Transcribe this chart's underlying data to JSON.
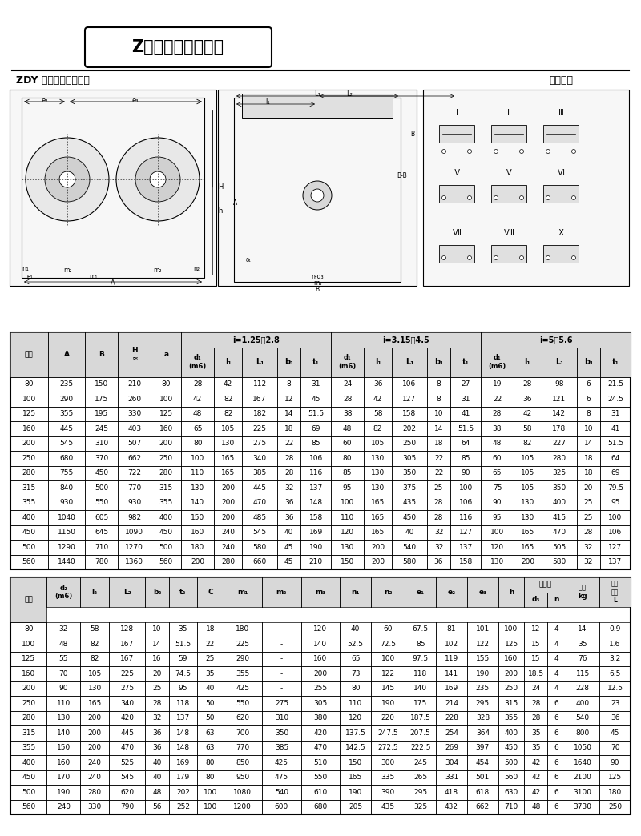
{
  "title": "Z系列外形安装尺寸",
  "subtitle_left": "ZDY 型圆柱齿轮减速机",
  "subtitle_right": "装配形式",
  "table1_data": [
    [
      80,
      235,
      150,
      210,
      80,
      28,
      42,
      112,
      8,
      31,
      24,
      36,
      106,
      8,
      27,
      19,
      28,
      98,
      6,
      21.5
    ],
    [
      100,
      290,
      175,
      260,
      100,
      42,
      82,
      167,
      12,
      45,
      28,
      42,
      127,
      8,
      31,
      22,
      36,
      121,
      6,
      24.5
    ],
    [
      125,
      355,
      195,
      330,
      125,
      48,
      82,
      182,
      14,
      51.5,
      38,
      58,
      158,
      10,
      41,
      28,
      42,
      142,
      8,
      31
    ],
    [
      160,
      445,
      245,
      403,
      160,
      65,
      105,
      225,
      18,
      69,
      48,
      82,
      202,
      14,
      51.5,
      38,
      58,
      178,
      10,
      41
    ],
    [
      200,
      545,
      310,
      507,
      200,
      80,
      130,
      275,
      22,
      85,
      60,
      105,
      250,
      18,
      64,
      48,
      82,
      227,
      14,
      51.5
    ],
    [
      250,
      680,
      370,
      662,
      250,
      100,
      165,
      340,
      28,
      106,
      80,
      130,
      305,
      22,
      85,
      60,
      105,
      280,
      18,
      64
    ],
    [
      280,
      755,
      450,
      722,
      280,
      110,
      165,
      385,
      28,
      116,
      85,
      130,
      350,
      22,
      90,
      65,
      105,
      325,
      18,
      69
    ],
    [
      315,
      840,
      500,
      770,
      315,
      130,
      200,
      445,
      32,
      137,
      95,
      130,
      375,
      25,
      100,
      75,
      105,
      350,
      20,
      79.5
    ],
    [
      355,
      930,
      550,
      930,
      355,
      140,
      200,
      470,
      36,
      148,
      100,
      165,
      435,
      28,
      106,
      90,
      130,
      400,
      25,
      95
    ],
    [
      400,
      1040,
      605,
      982,
      400,
      150,
      200,
      485,
      36,
      158,
      110,
      165,
      450,
      28,
      116,
      95,
      130,
      415,
      25,
      100
    ],
    [
      450,
      1150,
      645,
      1090,
      450,
      160,
      240,
      545,
      40,
      169,
      120,
      165,
      40,
      32,
      127,
      100,
      165,
      470,
      28,
      106
    ],
    [
      500,
      1290,
      710,
      1270,
      500,
      180,
      240,
      580,
      45,
      190,
      130,
      200,
      540,
      32,
      137,
      120,
      165,
      505,
      32,
      127
    ],
    [
      560,
      1440,
      780,
      1360,
      560,
      200,
      280,
      660,
      45,
      210,
      150,
      200,
      580,
      36,
      158,
      130,
      200,
      580,
      32,
      137
    ]
  ],
  "table2_data": [
    [
      80,
      32,
      58,
      128,
      10,
      35,
      18,
      180,
      "-",
      120,
      40,
      60,
      67.5,
      81,
      101,
      100,
      12,
      4,
      14,
      0.9
    ],
    [
      100,
      48,
      82,
      167,
      14,
      51.5,
      22,
      225,
      "-",
      140,
      52.5,
      72.5,
      85,
      102,
      122,
      125,
      15,
      4,
      35,
      1.6
    ],
    [
      125,
      55,
      82,
      167,
      16,
      59,
      25,
      290,
      "-",
      160,
      65,
      100,
      97.5,
      119,
      155,
      160,
      15,
      4,
      76,
      3.2
    ],
    [
      160,
      70,
      105,
      225,
      20,
      74.5,
      35,
      355,
      "-",
      200,
      73,
      122,
      118,
      141,
      190,
      200,
      18.5,
      4,
      115,
      6.5
    ],
    [
      200,
      90,
      130,
      275,
      25,
      95,
      40,
      425,
      "-",
      255,
      80,
      145,
      140,
      169,
      235,
      250,
      24,
      4,
      228,
      12.5
    ],
    [
      250,
      110,
      165,
      340,
      28,
      118,
      50,
      550,
      275,
      305,
      110,
      190,
      175,
      214,
      295,
      315,
      28,
      6,
      400,
      23
    ],
    [
      280,
      130,
      200,
      420,
      32,
      137,
      50,
      620,
      310,
      380,
      120,
      220,
      187.5,
      228,
      328,
      355,
      28,
      6,
      540,
      36
    ],
    [
      315,
      140,
      200,
      445,
      36,
      148,
      63,
      700,
      350,
      420,
      137.5,
      247.5,
      207.5,
      254,
      364,
      400,
      35,
      6,
      800,
      45
    ],
    [
      355,
      150,
      200,
      470,
      36,
      148,
      63,
      770,
      385,
      470,
      142.5,
      272.5,
      222.5,
      269,
      397,
      450,
      35,
      6,
      1050,
      70
    ],
    [
      400,
      160,
      240,
      525,
      40,
      169,
      80,
      850,
      425,
      510,
      150,
      300,
      245,
      304,
      454,
      500,
      42,
      6,
      1640,
      90
    ],
    [
      450,
      170,
      240,
      545,
      40,
      179,
      80,
      950,
      475,
      550,
      165,
      335,
      265,
      331,
      501,
      560,
      42,
      6,
      2100,
      125
    ],
    [
      500,
      190,
      280,
      620,
      48,
      202,
      100,
      1080,
      540,
      610,
      190,
      390,
      295,
      418,
      618,
      630,
      42,
      6,
      3100,
      180
    ],
    [
      560,
      240,
      330,
      790,
      56,
      252,
      100,
      1200,
      600,
      680,
      205,
      435,
      325,
      432,
      662,
      710,
      48,
      6,
      3730,
      250
    ]
  ],
  "bg_color": "#ffffff",
  "header_bg": "#d8d8d8"
}
